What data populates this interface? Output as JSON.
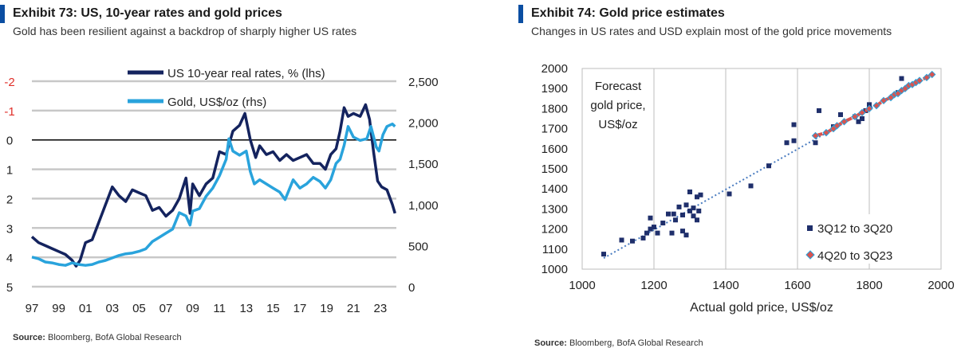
{
  "brand_color": "#0b4ea2",
  "chart_data": [
    {
      "type": "line",
      "exhibit": "Exhibit 73: US, 10-year rates and gold prices",
      "subtitle": "Gold has been resilient against a backdrop of sharply higher US rates",
      "source_label": "Source:",
      "source_text": "Bloomberg, BofA Global Research",
      "x_tick_labels": [
        "97",
        "99",
        "01",
        "03",
        "05",
        "07",
        "09",
        "11",
        "13",
        "15",
        "17",
        "19",
        "21",
        "23"
      ],
      "x_range": [
        1997,
        2024.2
      ],
      "y_left": {
        "label": "US 10-year real rates, % (lhs)",
        "inverted": true,
        "range": [
          -2,
          5
        ],
        "ticks": [
          -2,
          -1,
          0,
          1,
          2,
          3,
          4,
          5
        ],
        "tick_labels": [
          "-2",
          "-1",
          "0",
          "1",
          "2",
          "3",
          "4",
          "5"
        ],
        "negative_color": "#e0302a"
      },
      "y_right": {
        "label": "Gold, US$/oz (rhs)",
        "range": [
          0,
          2500
        ],
        "ticks": [
          0,
          500,
          1000,
          1500,
          2000,
          2500
        ],
        "tick_labels": [
          "0",
          "500",
          "1,000",
          "1,500",
          "2,000",
          "2,500"
        ]
      },
      "series": [
        {
          "name": "US 10-year real rates, % (lhs)",
          "color": "#14235e",
          "axis": "left",
          "x": [
            1997.0,
            1997.5,
            1998.0,
            1998.5,
            1999.0,
            1999.5,
            2000.0,
            2000.3,
            2000.6,
            2001.0,
            2001.5,
            2002.0,
            2002.5,
            2003.0,
            2003.5,
            2004.0,
            2004.5,
            2005.0,
            2005.5,
            2006.0,
            2006.5,
            2007.0,
            2007.5,
            2008.0,
            2008.5,
            2008.8,
            2009.0,
            2009.5,
            2010.0,
            2010.5,
            2011.0,
            2011.5,
            2012.0,
            2012.5,
            2012.9,
            2013.3,
            2013.7,
            2014.0,
            2014.5,
            2015.0,
            2015.5,
            2016.0,
            2016.5,
            2017.0,
            2017.5,
            2018.0,
            2018.5,
            2018.9,
            2019.3,
            2019.7,
            2020.0,
            2020.3,
            2020.6,
            2021.0,
            2021.5,
            2021.9,
            2022.2,
            2022.5,
            2022.8,
            2023.1,
            2023.5,
            2023.9,
            2024.1
          ],
          "y": [
            3.3,
            3.5,
            3.6,
            3.7,
            3.8,
            3.9,
            4.1,
            4.3,
            4.1,
            3.5,
            3.4,
            2.8,
            2.2,
            1.6,
            1.9,
            2.1,
            1.7,
            1.8,
            1.9,
            2.4,
            2.3,
            2.6,
            2.4,
            2.0,
            1.3,
            2.5,
            1.5,
            1.9,
            1.5,
            1.3,
            0.4,
            0.5,
            -0.3,
            -0.5,
            -0.9,
            0.0,
            0.6,
            0.2,
            0.5,
            0.4,
            0.7,
            0.5,
            0.7,
            0.6,
            0.5,
            0.8,
            0.8,
            1.0,
            0.5,
            0.3,
            -0.3,
            -1.1,
            -0.8,
            -0.9,
            -0.8,
            -1.2,
            -0.7,
            0.4,
            1.4,
            1.6,
            1.7,
            2.2,
            2.5
          ]
        },
        {
          "name": "Gold, US$/oz (rhs)",
          "color": "#29a3dc",
          "axis": "right",
          "x": [
            1997.0,
            1997.5,
            1998.0,
            1998.5,
            1999.0,
            1999.5,
            2000.0,
            2000.5,
            2001.0,
            2001.5,
            2002.0,
            2002.5,
            2003.0,
            2003.5,
            2004.0,
            2004.5,
            2005.0,
            2005.5,
            2006.0,
            2006.5,
            2007.0,
            2007.5,
            2008.0,
            2008.5,
            2008.8,
            2009.0,
            2009.5,
            2010.0,
            2010.5,
            2011.0,
            2011.5,
            2011.7,
            2012.0,
            2012.5,
            2013.0,
            2013.3,
            2013.6,
            2014.0,
            2014.5,
            2015.0,
            2015.5,
            2015.9,
            2016.5,
            2017.0,
            2017.5,
            2018.0,
            2018.5,
            2018.9,
            2019.3,
            2019.7,
            2020.0,
            2020.3,
            2020.6,
            2021.0,
            2021.5,
            2022.0,
            2022.3,
            2022.7,
            2022.9,
            2023.2,
            2023.5,
            2023.9,
            2024.1
          ],
          "y": [
            360,
            340,
            300,
            290,
            270,
            260,
            290,
            270,
            260,
            270,
            300,
            320,
            350,
            380,
            400,
            410,
            430,
            460,
            550,
            600,
            650,
            700,
            900,
            860,
            750,
            920,
            950,
            1100,
            1200,
            1350,
            1550,
            1800,
            1650,
            1600,
            1650,
            1400,
            1250,
            1300,
            1250,
            1200,
            1150,
            1060,
            1300,
            1200,
            1250,
            1330,
            1280,
            1200,
            1300,
            1500,
            1550,
            1720,
            1950,
            1820,
            1780,
            1800,
            1950,
            1700,
            1650,
            1850,
            1950,
            1980,
            1950
          ]
        }
      ]
    },
    {
      "type": "scatter",
      "exhibit": "Exhibit 74: Gold price estimates",
      "subtitle": "Changes in US rates and USD explain most of the gold price movements",
      "source_label": "Source:",
      "source_text": "Bloomberg, BofA Global Research",
      "xlabel": "Actual gold price, US$/oz",
      "ylabel_lines": [
        "Forecast",
        "gold price,",
        "US$/oz"
      ],
      "xlim": [
        1000,
        2000
      ],
      "ylim": [
        1000,
        2000
      ],
      "x_ticks": [
        1000,
        1200,
        1400,
        1600,
        1800,
        2000
      ],
      "x_tick_labels": [
        "1000",
        "1200",
        "1400",
        "1600",
        "1800",
        "2000"
      ],
      "y_ticks": [
        1000,
        1100,
        1200,
        1300,
        1400,
        1500,
        1600,
        1700,
        1800,
        1900,
        2000
      ],
      "y_tick_labels": [
        "1000",
        "1100",
        "1200",
        "1300",
        "1400",
        "1500",
        "1600",
        "1700",
        "1800",
        "1900",
        "2000"
      ],
      "trendline": {
        "x": [
          1060,
          1975
        ],
        "y": [
          1055,
          1975
        ],
        "color": "#4a7cc0"
      },
      "series": [
        {
          "name": "3Q12 to 3Q20",
          "color": "#1f2f6b",
          "marker": "square",
          "x": [
            1060,
            1110,
            1140,
            1170,
            1180,
            1190,
            1190,
            1200,
            1210,
            1225,
            1240,
            1250,
            1255,
            1260,
            1270,
            1280,
            1280,
            1290,
            1290,
            1300,
            1300,
            1310,
            1310,
            1320,
            1320,
            1325,
            1330,
            1410,
            1470,
            1520,
            1570,
            1590,
            1590,
            1650,
            1660,
            1700,
            1720,
            1760,
            1770,
            1780,
            1790,
            1800,
            1880,
            1890
          ],
          "y": [
            1075,
            1145,
            1140,
            1155,
            1180,
            1200,
            1255,
            1210,
            1180,
            1230,
            1275,
            1180,
            1275,
            1245,
            1310,
            1190,
            1270,
            1170,
            1320,
            1290,
            1385,
            1305,
            1265,
            1245,
            1360,
            1290,
            1370,
            1375,
            1415,
            1515,
            1630,
            1640,
            1720,
            1630,
            1790,
            1710,
            1770,
            1760,
            1735,
            1750,
            1790,
            1820,
            1880,
            1950
          ]
        },
        {
          "name": "4Q20 to 3Q23",
          "color": "#d9534f",
          "marker": "diamond",
          "x": [
            1650,
            1680,
            1700,
            1710,
            1730,
            1760,
            1780,
            1800,
            1820,
            1840,
            1860,
            1870,
            1880,
            1890,
            1900,
            1910,
            1920,
            1930,
            1940,
            1960,
            1975
          ],
          "y": [
            1665,
            1680,
            1700,
            1715,
            1735,
            1760,
            1780,
            1800,
            1815,
            1840,
            1855,
            1870,
            1875,
            1890,
            1900,
            1915,
            1920,
            1930,
            1940,
            1955,
            1970
          ]
        }
      ]
    }
  ]
}
